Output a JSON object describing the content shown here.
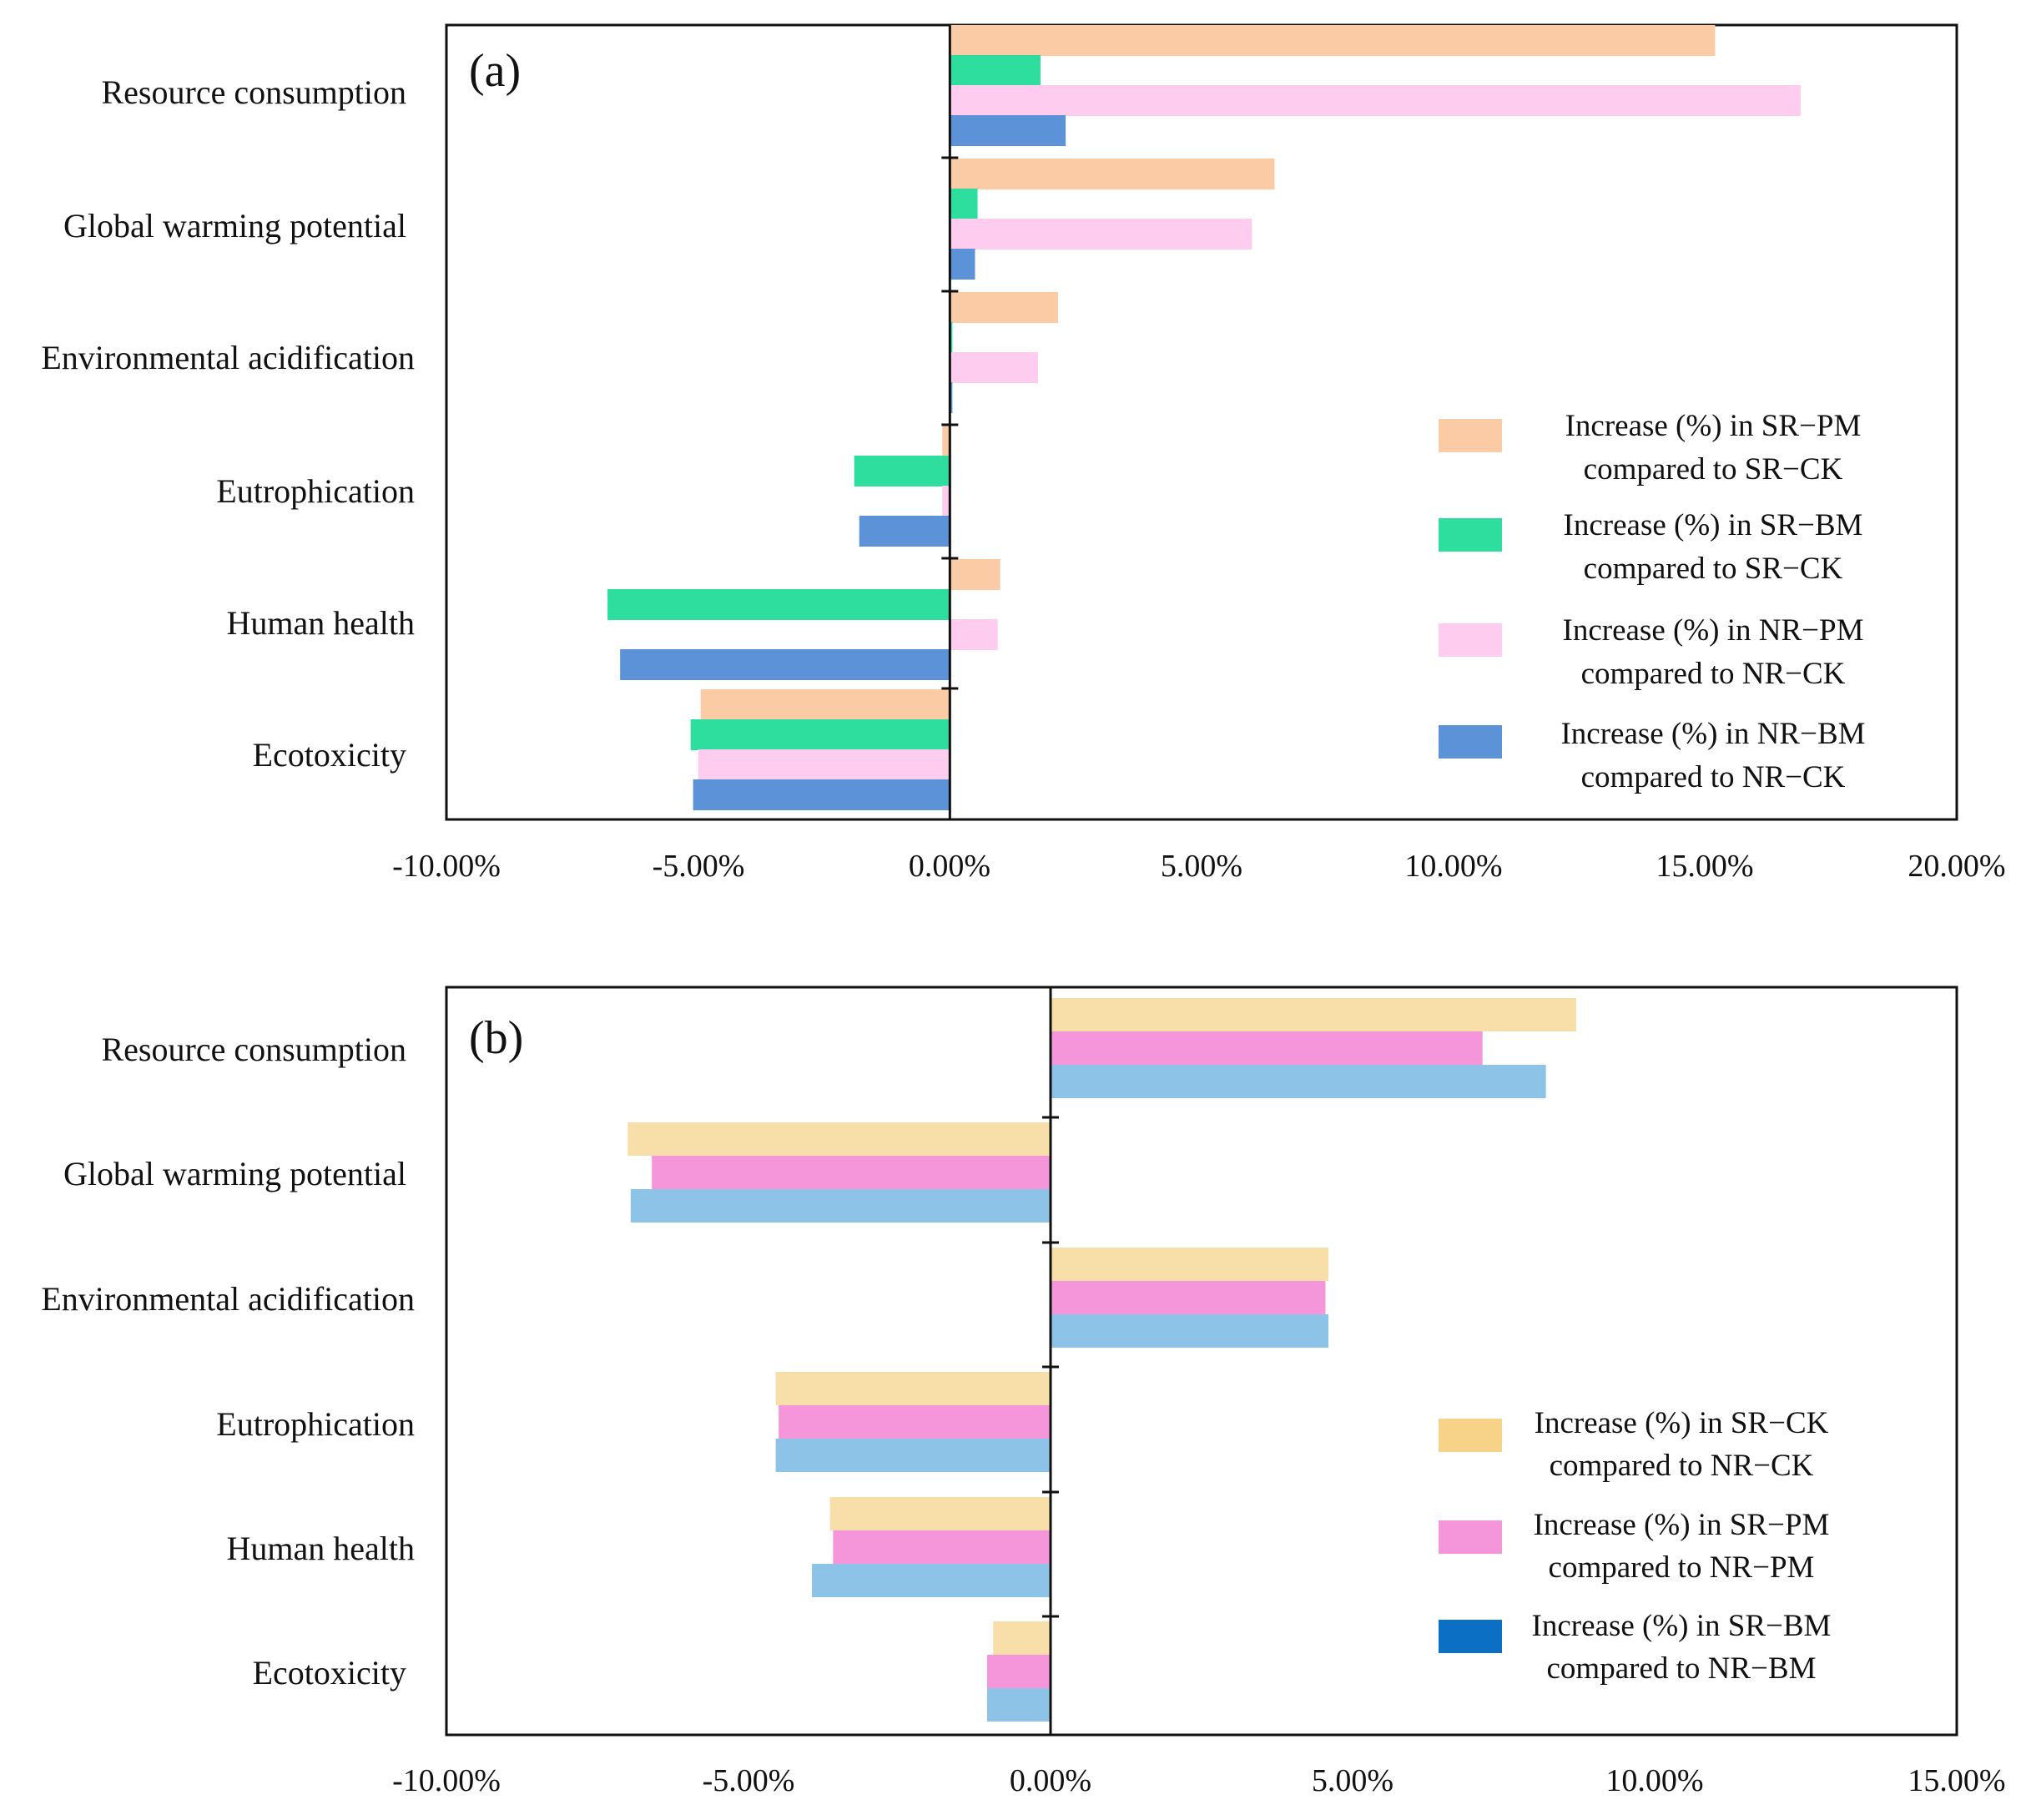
{
  "chart_data": [
    {
      "type": "bar",
      "orientation": "horizontal",
      "panel_label": "(a)",
      "xlim": [
        -10,
        20
      ],
      "ticks": [
        -10,
        -5,
        0,
        5,
        10,
        15,
        20
      ],
      "tick_labels": [
        "-10.00%",
        "-5.00%",
        "0.00%",
        "5.00%",
        "10.00%",
        "15.00%",
        "20.00%"
      ],
      "categories": [
        "Resource consumption",
        "Global warming potential",
        "Environmental acidification",
        "Eutrophication",
        "Human health",
        "Ecotoxicity"
      ],
      "series": [
        {
          "name": "Increase (%) in SR−PM compared to SR−CK",
          "legend_line1": "Increase (%) in SR−PM",
          "legend_line2": "compared to SR−CK",
          "color": "#FBCBA6",
          "values": [
            15.2,
            6.45,
            2.15,
            -0.15,
            1.0,
            -4.95
          ]
        },
        {
          "name": "Increase (%) in SR−BM compared to SR−CK",
          "legend_line1": "Increase (%) in SR−BM",
          "legend_line2": "compared to SR−CK",
          "color": "#2EDE9F",
          "values": [
            1.8,
            0.55,
            0.05,
            -1.9,
            -6.8,
            -5.15
          ]
        },
        {
          "name": "Increase (%) in NR−PM compared to NR−CK",
          "legend_line1": "Increase (%) in NR−PM",
          "legend_line2": "compared to NR−CK",
          "color": "#FDCCEE",
          "values": [
            16.9,
            6.0,
            1.75,
            -0.15,
            0.95,
            -5.0
          ]
        },
        {
          "name": "Increase (%) in NR−BM compared to NR−CK",
          "legend_line1": "Increase (%) in NR−BM",
          "legend_line2": "compared to NR−CK",
          "color": "#5B92D8",
          "values": [
            2.3,
            0.5,
            0.05,
            -1.8,
            -6.55,
            -5.1
          ]
        }
      ]
    },
    {
      "type": "bar",
      "orientation": "horizontal",
      "panel_label": "(b)",
      "xlim": [
        -10,
        15
      ],
      "ticks": [
        -10,
        -5,
        0,
        5,
        10,
        15
      ],
      "tick_labels": [
        "-10.00%",
        "-5.00%",
        "0.00%",
        "5.00%",
        "10.00%",
        "15.00%"
      ],
      "categories": [
        "Resource consumption",
        "Global warming potential",
        "Environmental acidification",
        "Eutrophication",
        "Human health",
        "Ecotoxicity"
      ],
      "series": [
        {
          "name": "Increase (%) in SR−CK compared to NR−CK",
          "legend_line1": "Increase (%) in SR−CK",
          "legend_line2": "compared to NR−CK",
          "color": "#F8DFA9",
          "legend_color": "#F7D389",
          "values": [
            8.7,
            -7.0,
            4.6,
            -4.55,
            -3.65,
            -0.95
          ]
        },
        {
          "name": "Increase (%) in SR−PM compared to NR−PM",
          "legend_line1": "Increase (%) in SR−PM",
          "legend_line2": "compared to NR−PM",
          "color": "#F595DA",
          "legend_color": "#F595DA",
          "values": [
            7.15,
            -6.6,
            4.55,
            -4.5,
            -3.6,
            -1.05
          ]
        },
        {
          "name": "Increase (%) in SR−BM compared to NR−BM",
          "legend_line1": "Increase (%) in SR−BM",
          "legend_line2": "compared to NR−BM",
          "color": "#8EC3E8",
          "legend_color": "#0B6FC4",
          "values": [
            8.2,
            -6.95,
            4.6,
            -4.55,
            -3.95,
            -1.05
          ]
        }
      ]
    }
  ]
}
